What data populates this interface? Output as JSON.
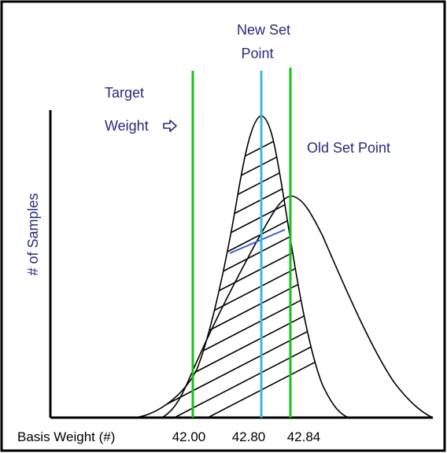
{
  "labels": {
    "new_set_point": [
      "New Set",
      "Point"
    ],
    "target_weight": [
      "Target",
      "Weight"
    ],
    "old_set_point": "Old Set Point",
    "y_axis": "# of Samples",
    "x_axis": "Basis Weight (#)"
  },
  "ticks": [
    "42.00",
    "42.80",
    "42.84"
  ],
  "colors": {
    "frame": "#000000",
    "green": "#17c21a",
    "cyan": "#36b9df",
    "text": "#262a7a",
    "curve": "#000000",
    "mean_line": "#3a5ad6"
  },
  "icons": {
    "arrow": "right-arrow-icon"
  }
}
